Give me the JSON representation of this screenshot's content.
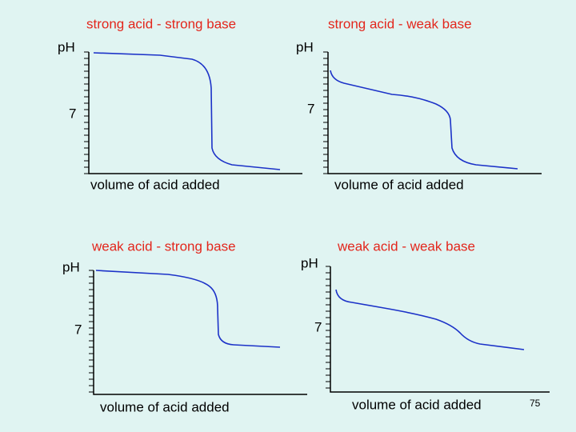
{
  "panels": [
    {
      "title": "strong acid - strong base",
      "y_label": "pH",
      "tick": "7",
      "x_label": "volume of acid added"
    },
    {
      "title": "strong acid - weak base",
      "y_label": "pH",
      "tick": "7",
      "x_label": "volume of acid added"
    },
    {
      "title": "weak acid - strong base",
      "y_label": "pH",
      "tick": "7",
      "x_label": "volume of acid added"
    },
    {
      "title": "weak acid - weak base",
      "y_label": "pH",
      "tick": "7",
      "x_label": "volume of acid added"
    }
  ],
  "page_number": "75"
}
